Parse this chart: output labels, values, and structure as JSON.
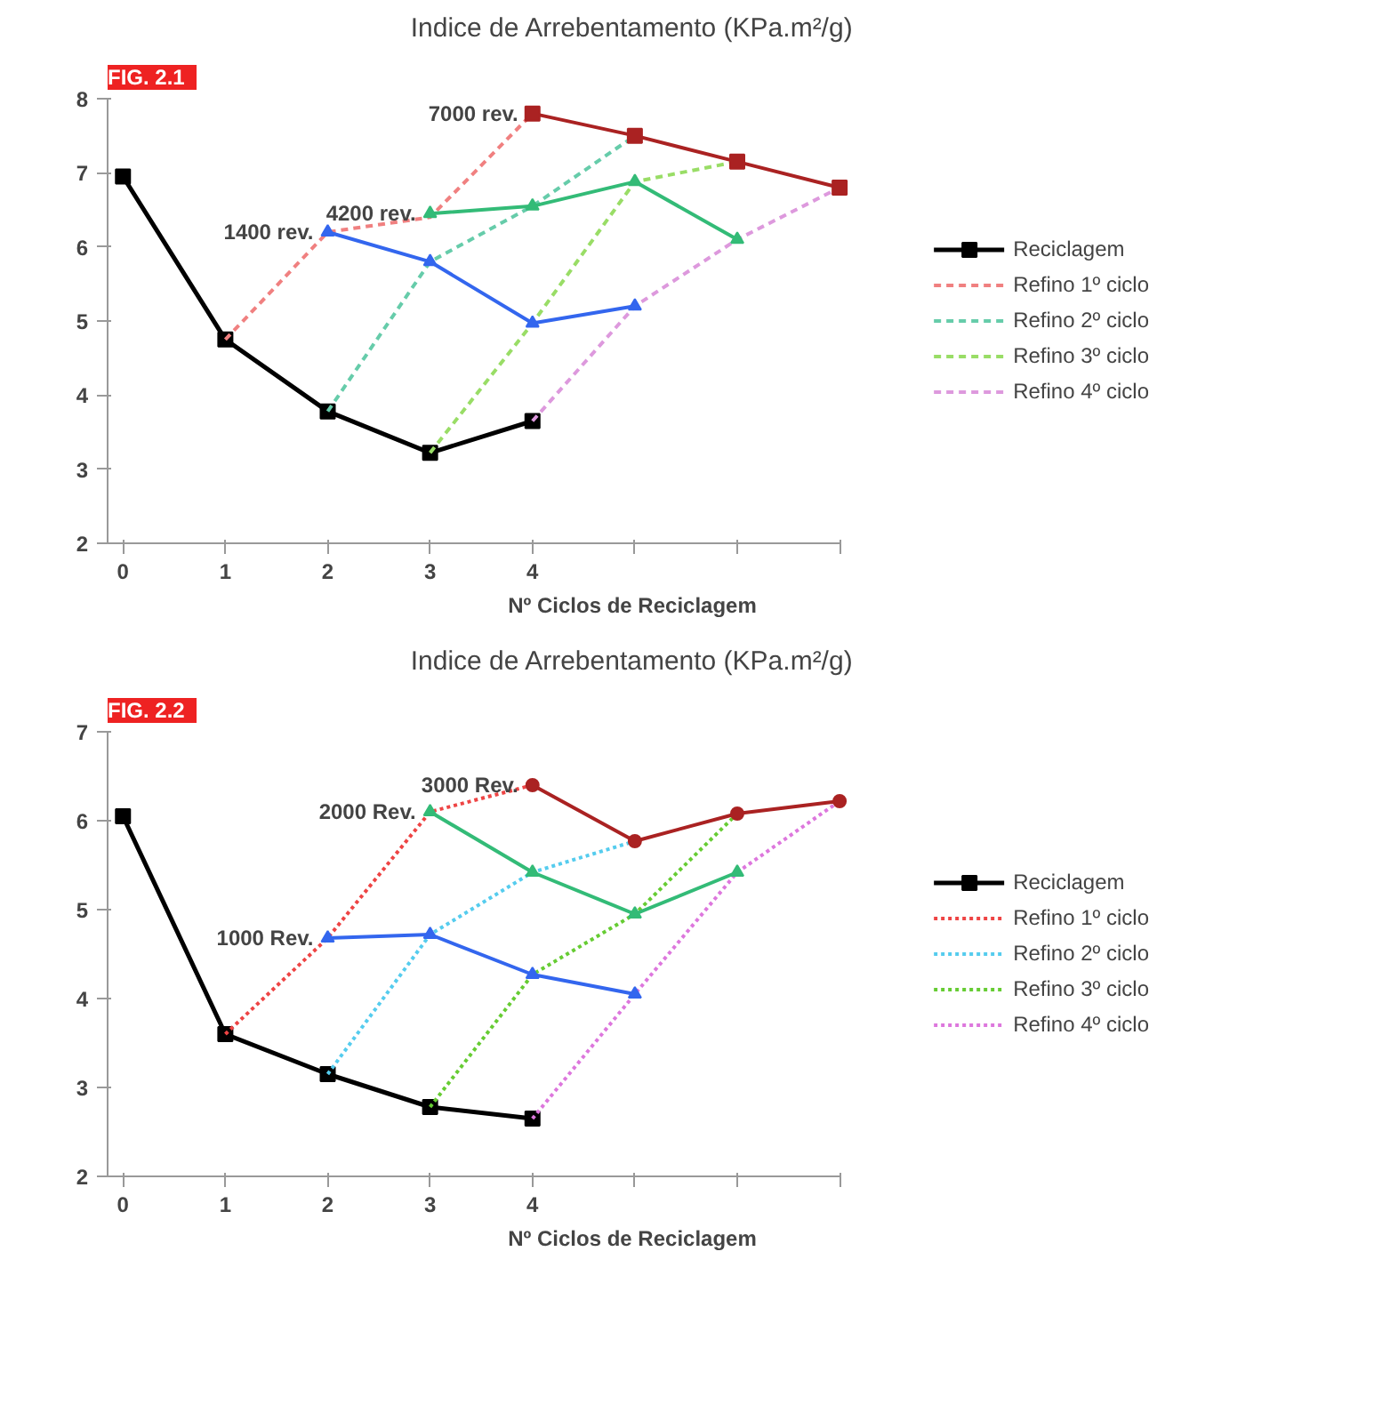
{
  "chart_data": [
    {
      "type": "line",
      "title": "Indice de Arrebentamento (KPa.m²/g)",
      "xlabel": "Nº Ciclos de Reciclagem",
      "categories": [
        "0",
        "1",
        "2",
        "3",
        "4",
        null,
        null,
        null
      ],
      "ylim": [
        2,
        8
      ],
      "yticks": [
        2,
        3,
        4,
        5,
        6,
        7,
        8
      ],
      "grid": false,
      "legend": "right",
      "marker": "none",
      "line_style": "solid",
      "annotations": [
        "FIG. 2.1",
        {
          "text": "1400 rev.",
          "x": "2",
          "y": 6.2
        },
        {
          "text": "4200 rev.",
          "x": "3",
          "y": 6.45
        },
        {
          "text": "7000 rev.",
          "x": "4",
          "y": 7.8
        }
      ],
      "series": [
        {
          "name": "Reciclagem",
          "color": "#000000",
          "marker": "square",
          "values": [
            6.95,
            4.75,
            3.78,
            3.22,
            3.65,
            null,
            null,
            null
          ]
        },
        {
          "name": "Refino 1º ciclo",
          "color": "#f08080",
          "line_style": "dashed",
          "values": [
            null,
            4.75,
            6.2,
            6.4,
            7.8,
            null,
            null,
            null
          ]
        },
        {
          "name": "Refino 2º ciclo",
          "color": "#66ccaa",
          "line_style": "dashed",
          "values": [
            null,
            null,
            3.78,
            5.8,
            6.55,
            7.5,
            null,
            null
          ]
        },
        {
          "name": "Refino 3º ciclo",
          "color": "#99dd66",
          "line_style": "dashed",
          "values": [
            null,
            null,
            null,
            3.22,
            4.97,
            6.88,
            7.15,
            null
          ]
        },
        {
          "name": "Refino 4º ciclo",
          "color": "#dd99dd",
          "line_style": "dashed",
          "values": [
            null,
            null,
            null,
            null,
            3.65,
            5.2,
            6.1,
            6.8
          ]
        },
        {
          "color": "#3366ee",
          "marker": "triangle",
          "values": [
            null,
            null,
            6.2,
            5.8,
            4.97,
            5.2,
            null,
            null
          ]
        },
        {
          "color": "#33bb77",
          "marker": "triangle",
          "values": [
            null,
            null,
            null,
            6.45,
            6.55,
            6.88,
            6.1,
            null
          ]
        },
        {
          "color": "#aa2222",
          "marker": "square",
          "values": [
            null,
            null,
            null,
            null,
            7.8,
            7.5,
            7.15,
            6.8
          ]
        }
      ]
    },
    {
      "type": "line",
      "title": "Indice de Arrebentamento (KPa.m²/g)",
      "xlabel": "Nº Ciclos de Reciclagem",
      "categories": [
        "0",
        "1",
        "2",
        "3",
        "4",
        null,
        null,
        null
      ],
      "ylim": [
        2,
        7
      ],
      "yticks": [
        2,
        3,
        4,
        5,
        6,
        7
      ],
      "grid": false,
      "legend": "right",
      "marker": "none",
      "line_style": "solid",
      "annotations": [
        "FIG. 2.2",
        {
          "text": "1000 Rev.",
          "x": "2",
          "y": 4.68
        },
        {
          "text": "2000 Rev.",
          "x": "3",
          "y": 6.1
        },
        {
          "text": "3000 Rev.",
          "x": "4",
          "y": 6.4
        }
      ],
      "series": [
        {
          "name": "Reciclagem",
          "color": "#000000",
          "marker": "square",
          "values": [
            6.05,
            3.6,
            3.15,
            2.78,
            2.65,
            null,
            null,
            null
          ]
        },
        {
          "name": "Refino 1º ciclo",
          "color": "#ee4444",
          "line_style": "dotted",
          "values": [
            null,
            3.6,
            4.68,
            6.1,
            6.4,
            null,
            null,
            null
          ]
        },
        {
          "name": "Refino 2º ciclo",
          "color": "#55ccee",
          "line_style": "dotted",
          "values": [
            null,
            null,
            3.15,
            4.72,
            5.42,
            5.77,
            null,
            null
          ]
        },
        {
          "name": "Refino 3º ciclo",
          "color": "#66cc33",
          "line_style": "dotted",
          "values": [
            null,
            null,
            null,
            2.78,
            4.27,
            4.95,
            6.08,
            null
          ]
        },
        {
          "name": "Refino 4º ciclo",
          "color": "#dd77dd",
          "line_style": "dotted",
          "values": [
            null,
            null,
            null,
            null,
            2.65,
            4.05,
            5.42,
            6.22
          ]
        },
        {
          "color": "#3366ee",
          "marker": "triangle",
          "values": [
            null,
            null,
            4.68,
            4.72,
            4.27,
            4.05,
            null,
            null
          ]
        },
        {
          "color": "#33bb77",
          "marker": "triangle",
          "values": [
            null,
            null,
            null,
            6.1,
            5.42,
            4.95,
            5.42,
            null
          ]
        },
        {
          "color": "#aa2222",
          "marker": "circle",
          "values": [
            null,
            null,
            null,
            null,
            6.4,
            5.77,
            6.08,
            6.22
          ]
        }
      ]
    }
  ]
}
